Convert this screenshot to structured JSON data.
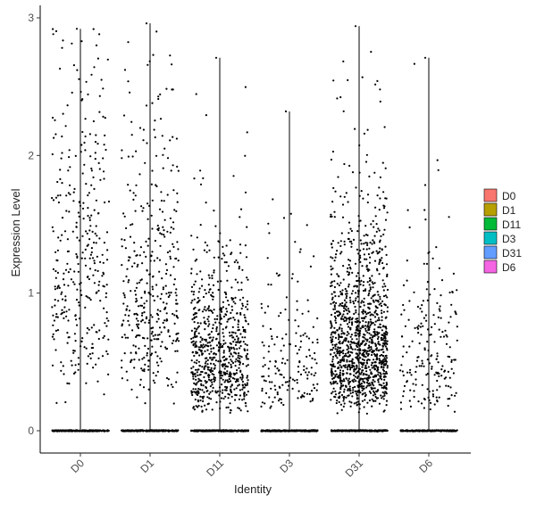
{
  "chart_data": {
    "type": "scatter",
    "subtype": "violin-jitter (stripchart of expression values by identity)",
    "xlabel": "Identity",
    "ylabel": "Expression Level",
    "categories": [
      "D0",
      "D1",
      "D11",
      "D3",
      "D31",
      "D6"
    ],
    "ylim": [
      -0.15,
      3.07
    ],
    "yticks": [
      0,
      1,
      2,
      3
    ],
    "grid": false,
    "legend": {
      "placement": "right",
      "entries": [
        {
          "label": "D0",
          "color": "#F8766D"
        },
        {
          "label": "D1",
          "color": "#B79F00"
        },
        {
          "label": "D11",
          "color": "#00BA38"
        },
        {
          "label": "D3",
          "color": "#00BFC4"
        },
        {
          "label": "D31",
          "color": "#619CFF"
        },
        {
          "label": "D6",
          "color": "#F564E3"
        }
      ]
    },
    "series": [
      {
        "category": "D0",
        "max": 2.92,
        "zero_cells": 220,
        "nonzero_cells": 340,
        "nonzero_median": 1.3
      },
      {
        "category": "D1",
        "max": 2.96,
        "zero_cells": 220,
        "nonzero_cells": 390,
        "nonzero_median": 0.95
      },
      {
        "category": "D11",
        "max": 2.71,
        "zero_cells": 230,
        "nonzero_cells": 720,
        "nonzero_median": 0.55
      },
      {
        "category": "D3",
        "max": 2.32,
        "zero_cells": 220,
        "nonzero_cells": 170,
        "nonzero_median": 0.5
      },
      {
        "category": "D31",
        "max": 2.94,
        "zero_cells": 240,
        "nonzero_cells": 1250,
        "nonzero_median": 0.65
      },
      {
        "category": "D6",
        "max": 2.71,
        "zero_cells": 210,
        "nonzero_cells": 200,
        "nonzero_median": 0.55
      }
    ],
    "colors": {
      "points": "#000000",
      "axis": "#333333",
      "background": "#ffffff"
    }
  }
}
